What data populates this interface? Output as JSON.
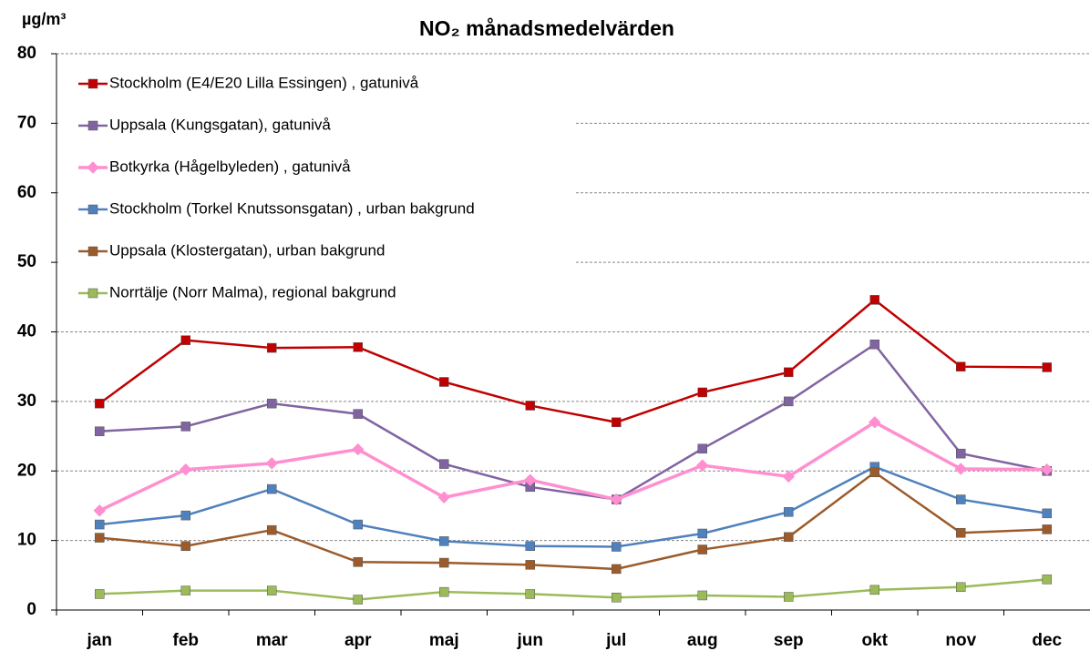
{
  "chart_data": {
    "type": "line",
    "title": "NO₂ månadsmedelvärden",
    "y_label": "µg/m³",
    "categories": [
      "jan",
      "feb",
      "mar",
      "apr",
      "maj",
      "jun",
      "jul",
      "aug",
      "sep",
      "okt",
      "nov",
      "dec"
    ],
    "series": [
      {
        "name": "Stockholm (E4/E20 Lilla Essingen) , gatunivå",
        "color": "#c00000",
        "marker": "square",
        "values": [
          29.7,
          38.8,
          37.7,
          37.8,
          32.8,
          29.4,
          27.0,
          31.3,
          34.2,
          44.6,
          35.0,
          34.9
        ]
      },
      {
        "name": "Uppsala (Kungsgatan), gatunivå",
        "color": "#8064a2",
        "marker": "square",
        "values": [
          25.7,
          26.4,
          29.7,
          28.2,
          21.0,
          17.7,
          15.9,
          23.2,
          30.0,
          38.2,
          22.5,
          20.0
        ]
      },
      {
        "name": "Botkyrka (Hågelbyleden) , gatunivå",
        "color": "#ff8fd0",
        "marker": "diamond",
        "values": [
          14.3,
          20.2,
          21.1,
          23.1,
          16.2,
          18.7,
          15.9,
          20.8,
          19.2,
          27.0,
          20.3,
          20.2
        ]
      },
      {
        "name": "Stockholm (Torkel Knutssonsgatan) , urban bakgrund",
        "color": "#4f81bd",
        "marker": "square",
        "values": [
          12.3,
          13.6,
          17.4,
          12.3,
          9.9,
          9.2,
          9.1,
          11.0,
          14.1,
          20.6,
          15.9,
          13.9
        ]
      },
      {
        "name": "Uppsala (Klostergatan), urban bakgrund",
        "color": "#9c5b2a",
        "marker": "square",
        "values": [
          10.4,
          9.2,
          11.5,
          6.9,
          6.8,
          6.5,
          5.9,
          8.7,
          10.5,
          19.8,
          11.1,
          11.6
        ]
      },
      {
        "name": "Norrtälje (Norr Malma), regional bakgrund",
        "color": "#9bbb59",
        "marker": "square",
        "values": [
          2.3,
          2.8,
          2.8,
          1.5,
          2.6,
          2.3,
          1.8,
          2.1,
          1.9,
          2.9,
          3.3,
          4.4
        ]
      }
    ],
    "ylim": [
      0,
      80
    ],
    "yticks": [
      0,
      10,
      20,
      30,
      40,
      50,
      60,
      70,
      80
    ],
    "grid": true,
    "legend": "upper left"
  }
}
